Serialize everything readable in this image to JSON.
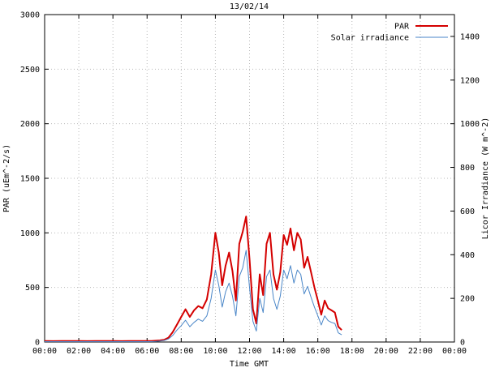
{
  "chart_data": {
    "type": "line",
    "title": "13/02/14",
    "xlabel": "Time GMT",
    "ylabel_left": "PAR (uEm^-2/s)",
    "ylabel_right": "Licor Irradiance (W m^-2)",
    "x_tick_labels": [
      "00:00",
      "02:00",
      "04:00",
      "06:00",
      "08:00",
      "10:00",
      "12:00",
      "14:00",
      "16:00",
      "18:00",
      "20:00",
      "22:00",
      "00:00"
    ],
    "x_tick_hours": [
      0,
      2,
      4,
      6,
      8,
      10,
      12,
      14,
      16,
      18,
      20,
      22,
      24
    ],
    "x_range_hours": [
      0,
      24
    ],
    "y_left": {
      "range": [
        0,
        3000
      ],
      "ticks": [
        0,
        500,
        1000,
        1500,
        2000,
        2500,
        3000
      ]
    },
    "y_right": {
      "range": [
        0,
        1500
      ],
      "ticks": [
        0,
        200,
        400,
        600,
        800,
        1000,
        1200,
        1400
      ]
    },
    "grid": true,
    "legend_position": "top-right-inside",
    "colors": {
      "par": "#d40000",
      "solar": "#4a86c8",
      "grid": "#b8b8b8",
      "axis": "#000000"
    },
    "x_hours": [
      0,
      0.5,
      1,
      1.5,
      2,
      2.5,
      3,
      3.5,
      4,
      4.5,
      5,
      5.5,
      6,
      6.25,
      6.5,
      6.75,
      7,
      7.25,
      7.5,
      7.75,
      8,
      8.25,
      8.5,
      8.75,
      9,
      9.25,
      9.5,
      9.75,
      10,
      10.2,
      10.4,
      10.6,
      10.8,
      11,
      11.2,
      11.4,
      11.6,
      11.8,
      12,
      12.2,
      12.4,
      12.6,
      12.8,
      13,
      13.2,
      13.4,
      13.6,
      13.8,
      14,
      14.2,
      14.4,
      14.6,
      14.8,
      15,
      15.2,
      15.4,
      15.6,
      15.8,
      16,
      16.2,
      16.4,
      16.6,
      16.8,
      17,
      17.2,
      17.4
    ],
    "series": [
      {
        "name": "PAR",
        "axis": "left",
        "color_key": "par",
        "line_width": 2,
        "values": [
          10,
          8,
          10,
          9,
          10,
          8,
          10,
          9,
          10,
          8,
          10,
          9,
          10,
          10,
          12,
          15,
          20,
          40,
          90,
          160,
          230,
          300,
          230,
          290,
          330,
          310,
          390,
          620,
          1000,
          820,
          520,
          700,
          820,
          650,
          380,
          900,
          1010,
          1150,
          760,
          300,
          170,
          620,
          430,
          900,
          1000,
          620,
          480,
          640,
          980,
          890,
          1040,
          840,
          1000,
          940,
          680,
          780,
          640,
          500,
          380,
          250,
          380,
          310,
          290,
          270,
          140,
          110
        ]
      },
      {
        "name": "Solar irradiance",
        "axis": "right",
        "color_key": "solar",
        "line_width": 1,
        "values": [
          2,
          2,
          2,
          2,
          2,
          2,
          2,
          2,
          2,
          2,
          2,
          2,
          2,
          2,
          3,
          5,
          7,
          14,
          30,
          55,
          75,
          100,
          70,
          90,
          105,
          95,
          120,
          200,
          330,
          260,
          160,
          230,
          270,
          210,
          120,
          300,
          340,
          420,
          250,
          95,
          50,
          200,
          135,
          300,
          330,
          200,
          150,
          210,
          330,
          290,
          350,
          270,
          330,
          310,
          220,
          255,
          205,
          160,
          120,
          78,
          120,
          98,
          90,
          85,
          42,
          33
        ]
      }
    ]
  }
}
